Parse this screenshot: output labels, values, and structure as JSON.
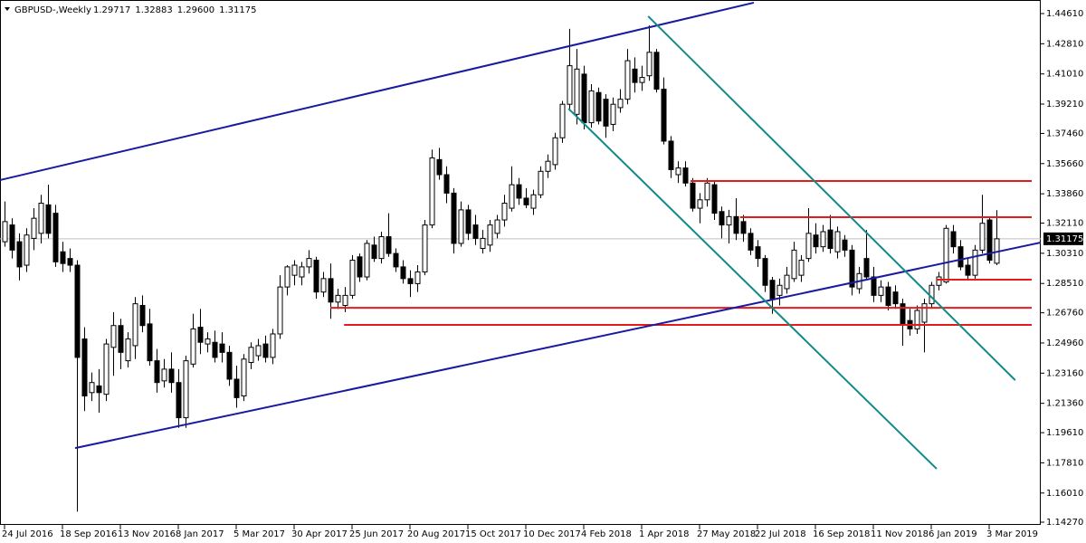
{
  "chart_data": {
    "type": "candlestick",
    "header": {
      "symbol": "GBPUSD-,Weekly",
      "ohlc": [
        "1.29717",
        "1.32883",
        "1.29600",
        "1.31175"
      ]
    },
    "categories": [
      "24 Jul 2016",
      null,
      null,
      null,
      null,
      null,
      null,
      null,
      "18 Sep 2016",
      null,
      null,
      null,
      null,
      null,
      null,
      null,
      "13 Nov 2016",
      null,
      null,
      null,
      null,
      null,
      null,
      null,
      "8 Jan 2017",
      null,
      null,
      null,
      null,
      null,
      null,
      null,
      "5 Mar 2017",
      null,
      null,
      null,
      null,
      null,
      null,
      null,
      "30 Apr 2017",
      null,
      null,
      null,
      null,
      null,
      null,
      null,
      "25 Jun 2017",
      null,
      null,
      null,
      null,
      null,
      null,
      null,
      "20 Aug 2017",
      null,
      null,
      null,
      null,
      null,
      null,
      null,
      "15 Oct 2017",
      null,
      null,
      null,
      null,
      null,
      null,
      null,
      "10 Dec 2017",
      null,
      null,
      null,
      null,
      null,
      null,
      null,
      "4 Feb 2018",
      null,
      null,
      null,
      null,
      null,
      null,
      null,
      "1 Apr 2018",
      null,
      null,
      null,
      null,
      null,
      null,
      null,
      "27 May 2018",
      null,
      null,
      null,
      null,
      null,
      null,
      null,
      "22 Jul 2018",
      null,
      null,
      null,
      null,
      null,
      null,
      null,
      "16 Sep 2018",
      null,
      null,
      null,
      null,
      null,
      null,
      null,
      "11 Nov 2018",
      null,
      null,
      null,
      null,
      null,
      null,
      null,
      "6 Jan 2019",
      null,
      null,
      null,
      null,
      null,
      null,
      null,
      "3 Mar 2019",
      null
    ],
    "ohlc": [
      [
        1.31,
        1.334,
        1.307,
        1.322
      ],
      [
        1.32,
        1.324,
        1.3,
        1.305
      ],
      [
        1.31,
        1.315,
        1.287,
        1.295
      ],
      [
        1.296,
        1.318,
        1.292,
        1.314
      ],
      [
        1.312,
        1.33,
        1.305,
        1.324
      ],
      [
        1.315,
        1.338,
        1.309,
        1.333
      ],
      [
        1.332,
        1.344,
        1.312,
        1.315
      ],
      [
        1.327,
        1.332,
        1.295,
        1.298
      ],
      [
        1.304,
        1.31,
        1.292,
        1.297
      ],
      [
        1.3,
        1.306,
        1.292,
        1.296
      ],
      [
        1.296,
        1.299,
        1.149,
        1.241
      ],
      [
        1.252,
        1.259,
        1.209,
        1.218
      ],
      [
        1.22,
        1.232,
        1.215,
        1.226
      ],
      [
        1.224,
        1.234,
        1.208,
        1.22
      ],
      [
        1.219,
        1.252,
        1.215,
        1.249
      ],
      [
        1.247,
        1.268,
        1.23,
        1.26
      ],
      [
        1.26,
        1.264,
        1.234,
        1.244
      ],
      [
        1.239,
        1.256,
        1.235,
        1.252
      ],
      [
        1.248,
        1.277,
        1.24,
        1.273
      ],
      [
        1.272,
        1.278,
        1.256,
        1.26
      ],
      [
        1.261,
        1.27,
        1.236,
        1.239
      ],
      [
        1.239,
        1.246,
        1.22,
        1.226
      ],
      [
        1.227,
        1.24,
        1.223,
        1.234
      ],
      [
        1.234,
        1.244,
        1.22,
        1.226
      ],
      [
        1.226,
        1.234,
        1.199,
        1.205
      ],
      [
        1.205,
        1.242,
        1.199,
        1.239
      ],
      [
        1.237,
        1.267,
        1.235,
        1.258
      ],
      [
        1.259,
        1.27,
        1.243,
        1.25
      ],
      [
        1.249,
        1.256,
        1.244,
        1.252
      ],
      [
        1.25,
        1.257,
        1.238,
        1.241
      ],
      [
        1.249,
        1.256,
        1.238,
        1.244
      ],
      [
        1.244,
        1.248,
        1.224,
        1.228
      ],
      [
        1.228,
        1.236,
        1.211,
        1.217
      ],
      [
        1.218,
        1.243,
        1.215,
        1.24
      ],
      [
        1.238,
        1.25,
        1.234,
        1.247
      ],
      [
        1.242,
        1.252,
        1.239,
        1.248
      ],
      [
        1.249,
        1.254,
        1.238,
        1.241
      ],
      [
        1.241,
        1.258,
        1.237,
        1.255
      ],
      [
        1.255,
        1.29,
        1.252,
        1.283
      ],
      [
        1.283,
        1.296,
        1.278,
        1.295
      ],
      [
        1.29,
        1.299,
        1.284,
        1.296
      ],
      [
        1.289,
        1.298,
        1.284,
        1.295
      ],
      [
        1.295,
        1.305,
        1.291,
        1.3
      ],
      [
        1.299,
        1.301,
        1.276,
        1.28
      ],
      [
        1.28,
        1.292,
        1.277,
        1.288
      ],
      [
        1.288,
        1.297,
        1.264,
        1.274
      ],
      [
        1.274,
        1.282,
        1.27,
        1.278
      ],
      [
        1.272,
        1.283,
        1.268,
        1.278
      ],
      [
        1.278,
        1.302,
        1.276,
        1.299
      ],
      [
        1.301,
        1.303,
        1.286,
        1.289
      ],
      [
        1.289,
        1.311,
        1.287,
        1.309
      ],
      [
        1.308,
        1.313,
        1.298,
        1.3
      ],
      [
        1.3,
        1.316,
        1.297,
        1.313
      ],
      [
        1.313,
        1.327,
        1.301,
        1.303
      ],
      [
        1.303,
        1.306,
        1.292,
        1.295
      ],
      [
        1.295,
        1.299,
        1.285,
        1.288
      ],
      [
        1.288,
        1.293,
        1.277,
        1.285
      ],
      [
        1.285,
        1.296,
        1.28,
        1.292
      ],
      [
        1.292,
        1.323,
        1.29,
        1.32
      ],
      [
        1.32,
        1.365,
        1.318,
        1.36
      ],
      [
        1.359,
        1.366,
        1.347,
        1.35
      ],
      [
        1.35,
        1.355,
        1.333,
        1.339
      ],
      [
        1.339,
        1.342,
        1.303,
        1.309
      ],
      [
        1.309,
        1.334,
        1.307,
        1.329
      ],
      [
        1.329,
        1.332,
        1.311,
        1.315
      ],
      [
        1.32,
        1.326,
        1.308,
        1.312
      ],
      [
        1.306,
        1.317,
        1.303,
        1.312
      ],
      [
        1.308,
        1.323,
        1.304,
        1.32
      ],
      [
        1.315,
        1.326,
        1.312,
        1.323
      ],
      [
        1.323,
        1.338,
        1.319,
        1.333
      ],
      [
        1.33,
        1.355,
        1.328,
        1.344
      ],
      [
        1.344,
        1.348,
        1.332,
        1.336
      ],
      [
        1.336,
        1.342,
        1.33,
        1.332
      ],
      [
        1.33,
        1.341,
        1.326,
        1.338
      ],
      [
        1.338,
        1.355,
        1.336,
        1.352
      ],
      [
        1.352,
        1.362,
        1.348,
        1.358
      ],
      [
        1.356,
        1.375,
        1.353,
        1.372
      ],
      [
        1.372,
        1.394,
        1.369,
        1.392
      ],
      [
        1.392,
        1.437,
        1.388,
        1.415
      ],
      [
        1.386,
        1.425,
        1.38,
        1.413
      ],
      [
        1.41,
        1.415,
        1.377,
        1.381
      ],
      [
        1.381,
        1.404,
        1.378,
        1.4
      ],
      [
        1.399,
        1.402,
        1.38,
        1.382
      ],
      [
        1.395,
        1.398,
        1.372,
        1.379
      ],
      [
        1.38,
        1.396,
        1.376,
        1.392
      ],
      [
        1.39,
        1.401,
        1.387,
        1.395
      ],
      [
        1.395,
        1.425,
        1.392,
        1.418
      ],
      [
        1.413,
        1.42,
        1.399,
        1.405
      ],
      [
        1.405,
        1.415,
        1.4,
        1.408
      ],
      [
        1.409,
        1.439,
        1.406,
        1.423
      ],
      [
        1.423,
        1.425,
        1.399,
        1.401
      ],
      [
        1.401,
        1.408,
        1.368,
        1.37
      ],
      [
        1.37,
        1.373,
        1.348,
        1.353
      ],
      [
        1.35,
        1.358,
        1.345,
        1.354
      ],
      [
        1.354,
        1.358,
        1.343,
        1.345
      ],
      [
        1.345,
        1.348,
        1.328,
        1.33
      ],
      [
        1.33,
        1.339,
        1.321,
        1.335
      ],
      [
        1.335,
        1.348,
        1.331,
        1.345
      ],
      [
        1.344,
        1.346,
        1.323,
        1.327
      ],
      [
        1.328,
        1.331,
        1.312,
        1.32
      ],
      [
        1.32,
        1.329,
        1.309,
        1.325
      ],
      [
        1.325,
        1.336,
        1.311,
        1.315
      ],
      [
        1.322,
        1.326,
        1.31,
        1.315
      ],
      [
        1.315,
        1.318,
        1.302,
        1.305
      ],
      [
        1.307,
        1.311,
        1.295,
        1.3
      ],
      [
        1.3,
        1.302,
        1.28,
        1.284
      ],
      [
        1.287,
        1.289,
        1.267,
        1.276
      ],
      [
        1.278,
        1.288,
        1.272,
        1.284
      ],
      [
        1.282,
        1.295,
        1.279,
        1.29
      ],
      [
        1.288,
        1.31,
        1.286,
        1.305
      ],
      [
        1.29,
        1.302,
        1.286,
        1.299
      ],
      [
        1.3,
        1.33,
        1.298,
        1.315
      ],
      [
        1.314,
        1.321,
        1.303,
        1.307
      ],
      [
        1.307,
        1.32,
        1.304,
        1.316
      ],
      [
        1.317,
        1.326,
        1.303,
        1.306
      ],
      [
        1.304,
        1.319,
        1.3,
        1.316
      ],
      [
        1.311,
        1.314,
        1.301,
        1.305
      ],
      [
        1.305,
        1.308,
        1.278,
        1.283
      ],
      [
        1.282,
        1.295,
        1.279,
        1.291
      ],
      [
        1.3,
        1.317,
        1.287,
        1.289
      ],
      [
        1.289,
        1.295,
        1.274,
        1.278
      ],
      [
        1.278,
        1.287,
        1.274,
        1.283
      ],
      [
        1.283,
        1.286,
        1.269,
        1.272
      ],
      [
        1.28,
        1.284,
        1.27,
        1.273
      ],
      [
        1.273,
        1.276,
        1.248,
        1.261
      ],
      [
        1.263,
        1.27,
        1.254,
        1.258
      ],
      [
        1.258,
        1.272,
        1.255,
        1.269
      ],
      [
        1.262,
        1.276,
        1.244,
        1.273
      ],
      [
        1.273,
        1.286,
        1.27,
        1.284
      ],
      [
        1.284,
        1.292,
        1.281,
        1.289
      ],
      [
        1.286,
        1.32,
        1.285,
        1.318
      ],
      [
        1.316,
        1.32,
        1.303,
        1.307
      ],
      [
        1.307,
        1.311,
        1.293,
        1.295
      ],
      [
        1.296,
        1.3,
        1.287,
        1.29
      ],
      [
        1.29,
        1.308,
        1.288,
        1.305
      ],
      [
        1.305,
        1.338,
        1.303,
        1.321
      ],
      [
        1.323,
        1.325,
        1.297,
        1.299
      ],
      [
        1.29717,
        1.32883,
        1.296,
        1.31175
      ]
    ],
    "ylim": [
      1.1427,
      1.4461
    ],
    "yticks": [
      {
        "value": 1.4461,
        "label": "1.44610"
      },
      {
        "value": 1.4281,
        "label": "1.42810"
      },
      {
        "value": 1.4101,
        "label": "1.41010"
      },
      {
        "value": 1.3921,
        "label": "1.39210"
      },
      {
        "value": 1.3746,
        "label": "1.37460"
      },
      {
        "value": 1.3566,
        "label": "1.35660"
      },
      {
        "value": 1.3386,
        "label": "1.33860"
      },
      {
        "value": 1.3211,
        "label": "1.32110"
      },
      {
        "value": 1.3031,
        "label": "1.30310"
      },
      {
        "value": 1.2851,
        "label": "1.28510"
      },
      {
        "value": 1.2676,
        "label": "1.26760"
      },
      {
        "value": 1.2496,
        "label": "1.24960"
      },
      {
        "value": 1.2316,
        "label": "1.23160"
      },
      {
        "value": 1.2136,
        "label": "1.21360"
      },
      {
        "value": 1.1961,
        "label": "1.19610"
      },
      {
        "value": 1.1781,
        "label": "1.17810"
      },
      {
        "value": 1.1601,
        "label": "1.16010"
      },
      {
        "value": 1.1427,
        "label": "1.14270"
      }
    ],
    "last_price": {
      "value": 1.31175,
      "label": "1.31175"
    },
    "hlines": [
      {
        "value": 1.3462,
        "start": 94.75,
        "color": "#e41b1b"
      },
      {
        "value": 1.3246,
        "start": 101.6,
        "color": "#e41b1b"
      },
      {
        "value": 1.2874,
        "start": 128.75,
        "color": "#e41b1b"
      },
      {
        "value": 1.2706,
        "start": 45,
        "color": "#e41b1b"
      },
      {
        "value": 1.2604,
        "start": 46.9,
        "color": "#e41b1b"
      }
    ],
    "trendlines": [
      {
        "x": [
          -0.6,
          103.5
        ],
        "y": [
          1.3468,
          1.4526
        ],
        "color": "#1a1aa0"
      },
      {
        "x": [
          9.75,
          143.1
        ],
        "y": [
          1.1869,
          1.3095
        ],
        "color": "#1a1aa0"
      },
      {
        "x": [
          88.9,
          139.6
        ],
        "y": [
          1.4445,
          1.2274
        ],
        "color": "#138a8a"
      },
      {
        "x": [
          77.9,
          128.75
        ],
        "y": [
          1.3894,
          1.1745
        ],
        "color": "#138a8a"
      }
    ]
  }
}
